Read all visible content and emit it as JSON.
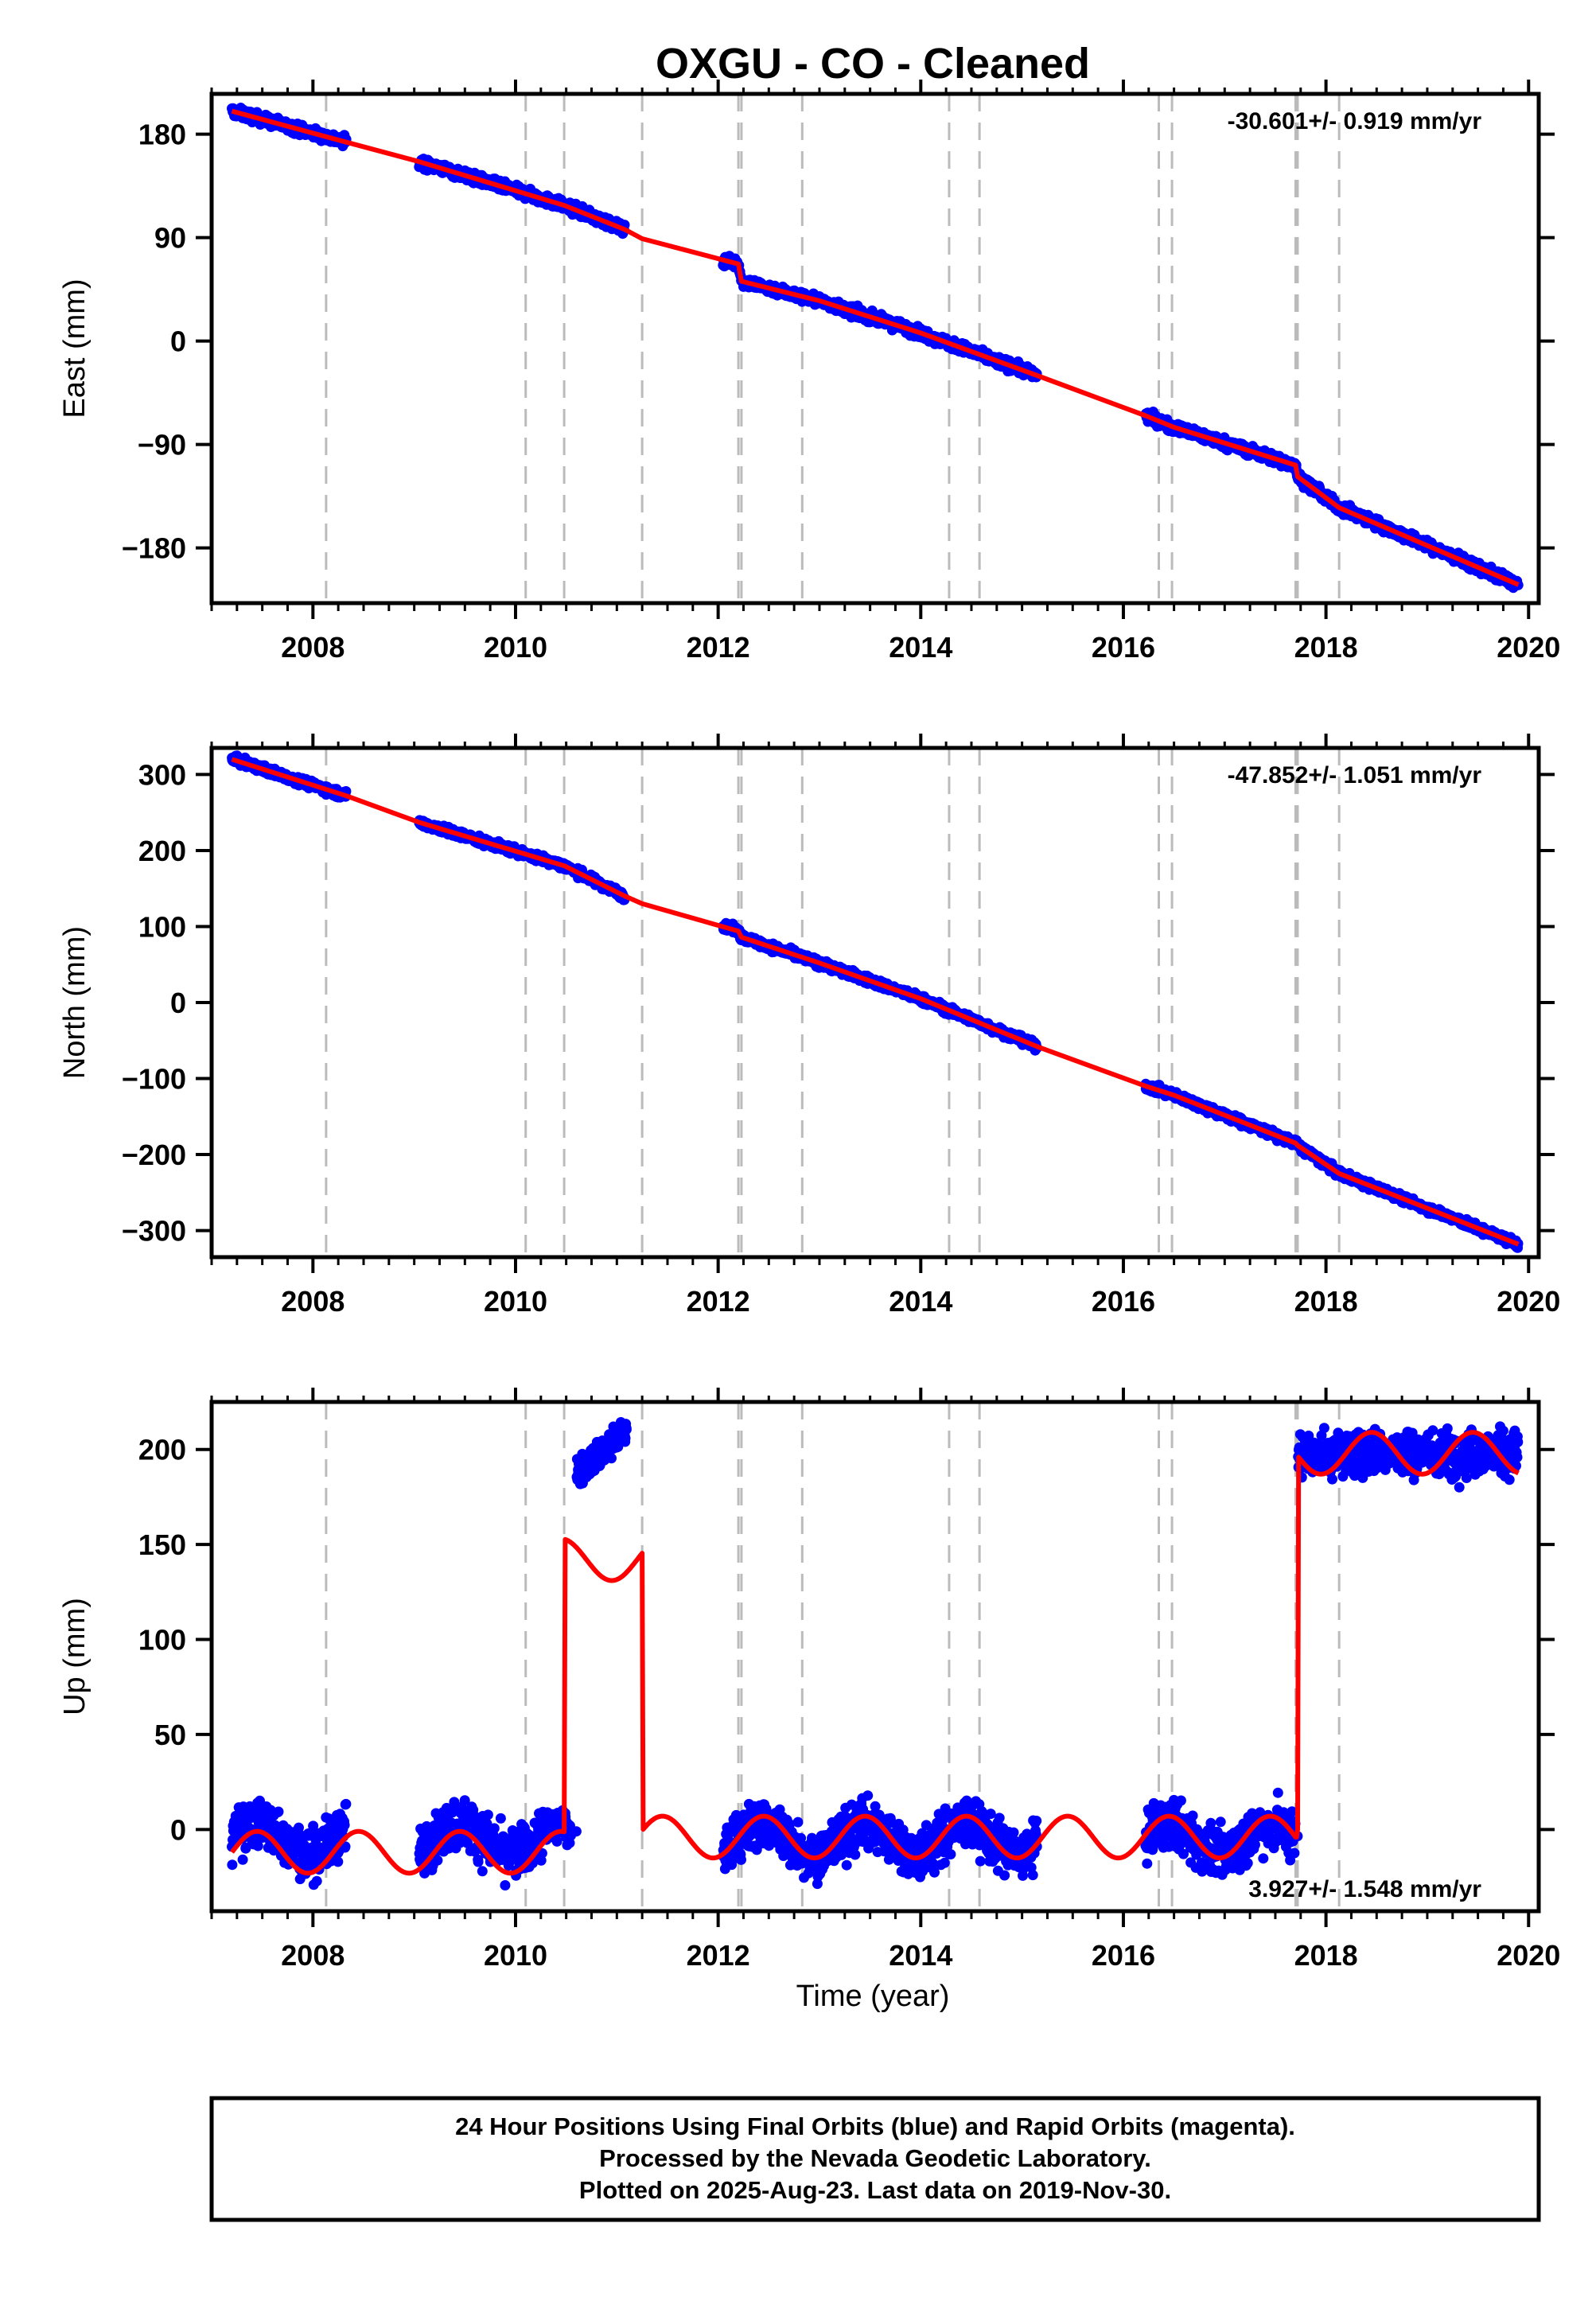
{
  "title": "OXGU  - CO - Cleaned",
  "x_axis_label": "Time (year)",
  "footer": {
    "line1": "24 Hour Positions Using Final Orbits (blue) and Rapid Orbits (magenta).",
    "line2": "Processed by the Nevada Geodetic Laboratory.",
    "line3": "Plotted on 2025-Aug-23. Last data on 2019-Nov-30."
  },
  "colors": {
    "data": "#0000ff",
    "model": "#ff0000",
    "event_lines": "#bbbbbb",
    "axes": "#000000"
  },
  "chart_data": [
    {
      "type": "scatter",
      "component": "East",
      "ylabel": "East (mm)",
      "rate_label": "-30.601+/- 0.919 mm/yr",
      "xlim": [
        2007.0,
        2020.1
      ],
      "ylim": [
        -228,
        215
      ],
      "x_ticks": [
        2008,
        2010,
        2012,
        2014,
        2016,
        2018,
        2020
      ],
      "y_ticks": [
        180,
        90,
        0,
        -90,
        -180
      ],
      "event_lines": [
        2008.13,
        2010.1,
        2010.48,
        2011.25,
        2012.2,
        2012.23,
        2012.83,
        2014.28,
        2014.58,
        2016.35,
        2016.48,
        2017.7,
        2017.72,
        2018.13
      ],
      "data_segments": [
        [
          2007.2,
          2008.33
        ],
        [
          2009.05,
          2011.08
        ],
        [
          2012.05,
          2015.15
        ],
        [
          2016.22,
          2019.9
        ]
      ],
      "model_knots": [
        [
          2007.2,
          200
        ],
        [
          2008.33,
          173
        ],
        [
          2009.05,
          156
        ],
        [
          2010.48,
          118
        ],
        [
          2011.08,
          97
        ],
        [
          2011.25,
          89
        ],
        [
          2012.2,
          67
        ],
        [
          2012.23,
          52
        ],
        [
          2013.0,
          35
        ],
        [
          2014.0,
          7
        ],
        [
          2015.15,
          -30
        ],
        [
          2016.22,
          -65
        ],
        [
          2016.5,
          -75
        ],
        [
          2017.7,
          -108
        ],
        [
          2017.72,
          -118
        ],
        [
          2018.13,
          -145
        ],
        [
          2019.9,
          -212
        ]
      ]
    },
    {
      "type": "scatter",
      "component": "North",
      "ylabel": "North (mm)",
      "rate_label": "-47.852+/- 1.051 mm/yr",
      "xlim": [
        2007.0,
        2020.1
      ],
      "ylim": [
        -335,
        335
      ],
      "x_ticks": [
        2008,
        2010,
        2012,
        2014,
        2016,
        2018,
        2020
      ],
      "y_ticks": [
        300,
        200,
        100,
        0,
        -100,
        -200,
        -300
      ],
      "event_lines": [
        2008.13,
        2010.1,
        2010.48,
        2011.25,
        2012.2,
        2012.23,
        2012.83,
        2014.28,
        2014.58,
        2016.35,
        2016.48,
        2017.7,
        2017.72,
        2018.13
      ],
      "data_segments": [
        [
          2007.2,
          2008.33
        ],
        [
          2009.05,
          2011.08
        ],
        [
          2012.05,
          2015.15
        ],
        [
          2016.22,
          2019.9
        ]
      ],
      "model_knots": [
        [
          2007.2,
          320
        ],
        [
          2008.33,
          272
        ],
        [
          2009.05,
          237
        ],
        [
          2010.48,
          180
        ],
        [
          2011.08,
          140
        ],
        [
          2011.25,
          130
        ],
        [
          2012.2,
          94
        ],
        [
          2012.23,
          86
        ],
        [
          2013.0,
          52
        ],
        [
          2014.0,
          5
        ],
        [
          2015.15,
          -58
        ],
        [
          2016.22,
          -110
        ],
        [
          2016.5,
          -122
        ],
        [
          2017.7,
          -185
        ],
        [
          2017.72,
          -188
        ],
        [
          2018.13,
          -225
        ],
        [
          2019.9,
          -318
        ]
      ]
    },
    {
      "type": "scatter",
      "component": "Up",
      "ylabel": "Up (mm)",
      "rate_label": "3.927+/- 1.548 mm/yr",
      "xlim": [
        2007.0,
        2020.1
      ],
      "ylim": [
        -43,
        225
      ],
      "x_ticks": [
        2008,
        2010,
        2012,
        2014,
        2016,
        2018,
        2020
      ],
      "y_ticks": [
        200,
        150,
        100,
        50,
        0
      ],
      "event_lines": [
        2008.13,
        2010.1,
        2010.48,
        2011.25,
        2012.2,
        2012.23,
        2012.83,
        2014.28,
        2014.58,
        2016.35,
        2016.48,
        2017.7,
        2017.72,
        2018.13
      ],
      "data_segments": [
        [
          2007.2,
          2008.33
        ],
        [
          2009.05,
          2010.55
        ],
        [
          2010.6,
          2011.1
        ],
        [
          2012.05,
          2015.15
        ],
        [
          2016.22,
          2017.7
        ],
        [
          2017.72,
          2019.9
        ]
      ],
      "offset_segments": [
        [
          2010.6,
          2011.1,
          188,
          22
        ]
      ],
      "up_levels": [
        [
          2007.2,
          2010.48,
          -12
        ],
        [
          2010.48,
          2011.25,
          142
        ],
        [
          2011.25,
          2017.7,
          -4
        ],
        [
          2017.72,
          2019.9,
          198
        ]
      ]
    }
  ]
}
